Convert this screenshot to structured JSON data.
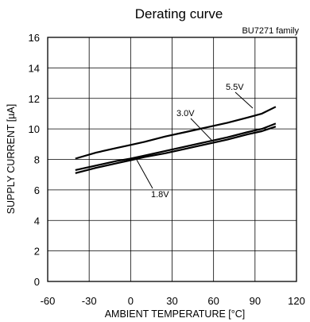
{
  "chart_data": {
    "type": "line",
    "title": "Derating curve",
    "subtitle": "BU7271 family",
    "xlabel": "AMBIENT TEMPERATURE [°C]",
    "ylabel": "SUPPLY CURRENT [µA]",
    "xlim": [
      -60,
      120
    ],
    "ylim": [
      0,
      16
    ],
    "xticks": [
      -60,
      -30,
      0,
      30,
      60,
      90,
      120
    ],
    "yticks": [
      0,
      2,
      4,
      6,
      8,
      10,
      12,
      14,
      16
    ],
    "grid": true,
    "series": [
      {
        "name": "5.5V",
        "x": [
          -40,
          -25,
          -10,
          0,
          10,
          25,
          40,
          55,
          70,
          85,
          95,
          105
        ],
        "y": [
          8.05,
          8.45,
          8.75,
          8.95,
          9.15,
          9.5,
          9.8,
          10.1,
          10.4,
          10.75,
          11.0,
          11.45
        ]
      },
      {
        "name": "3.0V",
        "x": [
          -40,
          -25,
          -10,
          0,
          10,
          25,
          40,
          55,
          70,
          85,
          95,
          105
        ],
        "y": [
          7.3,
          7.6,
          7.9,
          8.05,
          8.25,
          8.55,
          8.85,
          9.15,
          9.45,
          9.8,
          10.0,
          10.35
        ]
      },
      {
        "name": "1.8V",
        "x": [
          -40,
          -25,
          -10,
          0,
          10,
          25,
          40,
          55,
          70,
          85,
          95,
          105
        ],
        "y": [
          7.1,
          7.45,
          7.75,
          7.95,
          8.15,
          8.4,
          8.7,
          9.0,
          9.3,
          9.65,
          9.85,
          10.15
        ]
      }
    ]
  }
}
